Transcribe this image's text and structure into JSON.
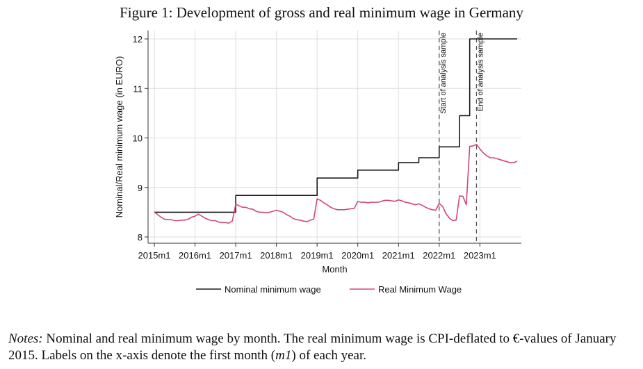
{
  "figure": {
    "title": "Figure 1: Development of gross and real minimum wage in Germany",
    "notes_label": "Notes:",
    "notes_text_1": "Nominal and real minimum wage by month. The real minimum wage is CPI-deflated to €-values of January 2015. Labels on the x-axis denote the first month (",
    "notes_italic": "m1",
    "notes_text_2": ") of each year."
  },
  "colors": {
    "nominal": "#1a1a1a",
    "real": "#d1487a",
    "grid": "#dddddd",
    "axis": "#333333"
  },
  "chart_data": {
    "type": "line",
    "title": "",
    "xlabel": "Month",
    "ylabel": "Nominal/Real minimum wage (in EURO)",
    "ylim": [
      8,
      12
    ],
    "yticks": [
      8,
      9,
      10,
      11,
      12
    ],
    "xticks": [
      "2015m1",
      "2016m1",
      "2017m1",
      "2018m1",
      "2019m1",
      "2020m1",
      "2021m1",
      "2022m1",
      "2023m1"
    ],
    "grid": true,
    "legend_position": "bottom",
    "annotations": [
      {
        "text": "Start of analysis sample",
        "x": "2022m1"
      },
      {
        "text": "End of analysis sample",
        "x": "2022m12"
      }
    ],
    "series": [
      {
        "name": "Nominal minimum wage",
        "points": [
          [
            "2015m1",
            8.5
          ],
          [
            "2016m12",
            8.5
          ],
          [
            "2017m1",
            8.84
          ],
          [
            "2018m12",
            8.84
          ],
          [
            "2019m1",
            9.19
          ],
          [
            "2019m12",
            9.19
          ],
          [
            "2020m1",
            9.35
          ],
          [
            "2020m12",
            9.35
          ],
          [
            "2021m1",
            9.5
          ],
          [
            "2021m6",
            9.5
          ],
          [
            "2021m7",
            9.6
          ],
          [
            "2021m12",
            9.6
          ],
          [
            "2022m1",
            9.82
          ],
          [
            "2022m6",
            9.82
          ],
          [
            "2022m7",
            10.45
          ],
          [
            "2022m9",
            10.45
          ],
          [
            "2022m10",
            12.0
          ],
          [
            "2023m12",
            12.0
          ]
        ]
      },
      {
        "name": "Real Minimum Wage",
        "points": [
          [
            "2015m1",
            8.5
          ],
          [
            "2015m2",
            8.45
          ],
          [
            "2015m3",
            8.4
          ],
          [
            "2015m4",
            8.36
          ],
          [
            "2015m5",
            8.35
          ],
          [
            "2015m6",
            8.35
          ],
          [
            "2015m7",
            8.33
          ],
          [
            "2015m8",
            8.33
          ],
          [
            "2015m9",
            8.34
          ],
          [
            "2015m10",
            8.34
          ],
          [
            "2015m11",
            8.36
          ],
          [
            "2015m12",
            8.4
          ],
          [
            "2016m1",
            8.42
          ],
          [
            "2016m2",
            8.46
          ],
          [
            "2016m3",
            8.42
          ],
          [
            "2016m4",
            8.38
          ],
          [
            "2016m5",
            8.35
          ],
          [
            "2016m6",
            8.33
          ],
          [
            "2016m7",
            8.33
          ],
          [
            "2016m8",
            8.3
          ],
          [
            "2016m9",
            8.29
          ],
          [
            "2016m10",
            8.29
          ],
          [
            "2016m11",
            8.28
          ],
          [
            "2016m12",
            8.32
          ],
          [
            "2017m1",
            8.66
          ],
          [
            "2017m2",
            8.63
          ],
          [
            "2017m3",
            8.6
          ],
          [
            "2017m4",
            8.6
          ],
          [
            "2017m5",
            8.57
          ],
          [
            "2017m6",
            8.56
          ],
          [
            "2017m7",
            8.52
          ],
          [
            "2017m8",
            8.5
          ],
          [
            "2017m9",
            8.5
          ],
          [
            "2017m10",
            8.49
          ],
          [
            "2017m11",
            8.5
          ],
          [
            "2017m12",
            8.52
          ],
          [
            "2018m1",
            8.54
          ],
          [
            "2018m2",
            8.52
          ],
          [
            "2018m3",
            8.5
          ],
          [
            "2018m4",
            8.45
          ],
          [
            "2018m5",
            8.42
          ],
          [
            "2018m6",
            8.37
          ],
          [
            "2018m7",
            8.35
          ],
          [
            "2018m8",
            8.34
          ],
          [
            "2018m9",
            8.32
          ],
          [
            "2018m10",
            8.31
          ],
          [
            "2018m11",
            8.34
          ],
          [
            "2018m12",
            8.36
          ],
          [
            "2019m1",
            8.77
          ],
          [
            "2019m2",
            8.74
          ],
          [
            "2019m3",
            8.69
          ],
          [
            "2019m4",
            8.65
          ],
          [
            "2019m5",
            8.6
          ],
          [
            "2019m6",
            8.57
          ],
          [
            "2019m7",
            8.55
          ],
          [
            "2019m8",
            8.55
          ],
          [
            "2019m9",
            8.55
          ],
          [
            "2019m10",
            8.56
          ],
          [
            "2019m11",
            8.57
          ],
          [
            "2019m12",
            8.58
          ],
          [
            "2020m1",
            8.72
          ],
          [
            "2020m2",
            8.7
          ],
          [
            "2020m3",
            8.7
          ],
          [
            "2020m4",
            8.69
          ],
          [
            "2020m5",
            8.7
          ],
          [
            "2020m6",
            8.7
          ],
          [
            "2020m7",
            8.7
          ],
          [
            "2020m8",
            8.72
          ],
          [
            "2020m9",
            8.74
          ],
          [
            "2020m10",
            8.74
          ],
          [
            "2020m11",
            8.73
          ],
          [
            "2020m12",
            8.72
          ],
          [
            "2021m1",
            8.75
          ],
          [
            "2021m2",
            8.73
          ],
          [
            "2021m3",
            8.7
          ],
          [
            "2021m4",
            8.69
          ],
          [
            "2021m5",
            8.67
          ],
          [
            "2021m6",
            8.65
          ],
          [
            "2021m7",
            8.67
          ],
          [
            "2021m8",
            8.64
          ],
          [
            "2021m9",
            8.6
          ],
          [
            "2021m10",
            8.57
          ],
          [
            "2021m11",
            8.55
          ],
          [
            "2021m12",
            8.54
          ],
          [
            "2022m1",
            8.68
          ],
          [
            "2022m2",
            8.62
          ],
          [
            "2022m3",
            8.47
          ],
          [
            "2022m4",
            8.38
          ],
          [
            "2022m5",
            8.33
          ],
          [
            "2022m6",
            8.34
          ],
          [
            "2022m7",
            8.83
          ],
          [
            "2022m8",
            8.82
          ],
          [
            "2022m9",
            8.65
          ],
          [
            "2022m10",
            9.83
          ],
          [
            "2022m11",
            9.84
          ],
          [
            "2022m12",
            9.87
          ],
          [
            "2023m1",
            9.78
          ],
          [
            "2023m2",
            9.7
          ],
          [
            "2023m3",
            9.64
          ],
          [
            "2023m4",
            9.6
          ],
          [
            "2023m5",
            9.6
          ],
          [
            "2023m6",
            9.58
          ],
          [
            "2023m7",
            9.56
          ],
          [
            "2023m8",
            9.54
          ],
          [
            "2023m9",
            9.52
          ],
          [
            "2023m10",
            9.5
          ],
          [
            "2023m11",
            9.5
          ],
          [
            "2023m12",
            9.53
          ]
        ]
      }
    ]
  }
}
